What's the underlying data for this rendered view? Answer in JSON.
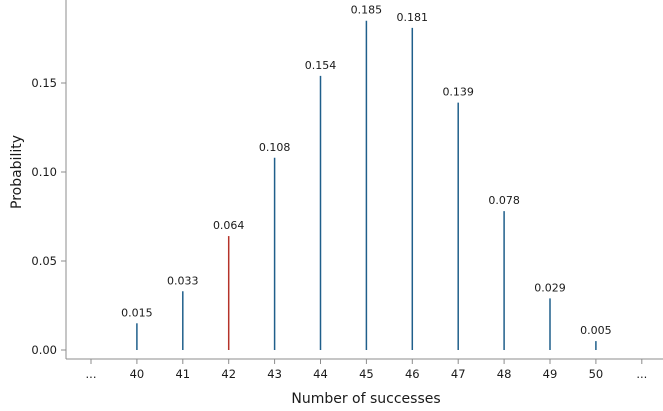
{
  "chart_data": {
    "type": "bar",
    "xlabel": "Number of successes",
    "ylabel": "Probability",
    "categories": [
      "...",
      "40",
      "41",
      "42",
      "43",
      "44",
      "45",
      "46",
      "47",
      "48",
      "49",
      "50",
      "..."
    ],
    "x": [
      40,
      41,
      42,
      43,
      44,
      45,
      46,
      47,
      48,
      49,
      50
    ],
    "values": [
      0.015,
      0.033,
      0.064,
      0.108,
      0.154,
      0.185,
      0.181,
      0.139,
      0.078,
      0.029,
      0.005
    ],
    "data_labels": [
      "0.015",
      "0.033",
      "0.064",
      "0.108",
      "0.154",
      "0.185",
      "0.181",
      "0.139",
      "0.078",
      "0.029",
      "0.005"
    ],
    "highlight_x": 42,
    "ylim": [
      0,
      0.19
    ],
    "yticks": [
      0.0,
      0.05,
      0.1,
      0.15
    ],
    "ytick_labels": [
      "0.00",
      "0.05",
      "0.10",
      "0.15"
    ],
    "grid": false,
    "colors": {
      "bar": "#1f5f8b",
      "highlight": "#b5332a",
      "axis": "#8c8c8c"
    }
  }
}
